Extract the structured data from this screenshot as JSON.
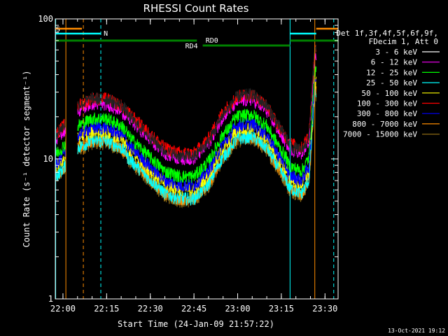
{
  "chart_data": {
    "type": "line",
    "title": "RHESSI Count Rates",
    "xlabel": "Start Time (24-Jan-09 21:57:22)",
    "ylabel": "Count Rate (s⁻¹ detector segment⁻¹)",
    "x_range": [
      "21:57:22",
      "23:34:30"
    ],
    "ylim": [
      1,
      100
    ],
    "yscale": "log",
    "x_ticks": [
      "22:00",
      "22:15",
      "22:30",
      "22:45",
      "23:00",
      "23:15",
      "23:30"
    ],
    "y_ticks": [
      "1",
      "10",
      "100"
    ],
    "legend_header": [
      "Det 1f,3f,4f,5f,6f,9f,",
      "FDecim 1, Att 0"
    ],
    "legend_placement": "right",
    "series": [
      {
        "name": "3 - 6 keV",
        "color": "#000000",
        "level": 1.0
      },
      {
        "name": "6 - 12 keV",
        "color": "#ff00ff",
        "level": 0.92
      },
      {
        "name": "12 - 25 keV",
        "color": "#00ff00",
        "level": 0.72
      },
      {
        "name": "25 - 50 keV",
        "color": "#00ffff",
        "level": 0.5
      },
      {
        "name": "50 - 100 keV",
        "color": "#ffff00",
        "level": 0.58
      },
      {
        "name": "100 - 300 keV",
        "color": "#ff0000",
        "level": 1.0
      },
      {
        "name": "300 - 800 keV",
        "color": "#0000ff",
        "level": 0.62
      },
      {
        "name": "800 - 7000 keV",
        "color": "#ff8c00",
        "level": 0.5
      },
      {
        "name": "7000 - 15000 keV",
        "color": "#8b6914",
        "level": 0.48
      }
    ],
    "profile": [
      {
        "t": "21:57:22",
        "v": 15
      },
      {
        "t": "22:00:00",
        "v": 17
      },
      {
        "t": "22:05:00",
        "v": 24
      },
      {
        "t": "22:10:00",
        "v": 27
      },
      {
        "t": "22:15:00",
        "v": 27
      },
      {
        "t": "22:20:00",
        "v": 24
      },
      {
        "t": "22:25:00",
        "v": 19
      },
      {
        "t": "22:30:00",
        "v": 15
      },
      {
        "t": "22:35:00",
        "v": 12
      },
      {
        "t": "22:40:00",
        "v": 11
      },
      {
        "t": "22:45:00",
        "v": 11
      },
      {
        "t": "22:50:00",
        "v": 14
      },
      {
        "t": "22:55:00",
        "v": 22
      },
      {
        "t": "23:00:00",
        "v": 28
      },
      {
        "t": "23:05:00",
        "v": 29
      },
      {
        "t": "23:10:00",
        "v": 24
      },
      {
        "t": "23:15:00",
        "v": 16
      },
      {
        "t": "23:18:00",
        "v": 13
      },
      {
        "t": "23:22:00",
        "v": 12
      },
      {
        "t": "23:24:30",
        "v": 15
      },
      {
        "t": "23:26:30",
        "v": 60
      }
    ],
    "data_gaps": [
      {
        "from": "22:01:00",
        "to": "22:05:00"
      },
      {
        "from": "23:27:00",
        "to": "23:34:30"
      }
    ],
    "markers": [
      {
        "label": "S",
        "color": "#ff8c00"
      },
      {
        "label": "N",
        "color": "#00ffff"
      },
      {
        "label": "RD0",
        "color": "#008000"
      },
      {
        "label": "RD4",
        "color": "#008000"
      }
    ],
    "timestamp": "13-Oct-2021 19:12"
  }
}
